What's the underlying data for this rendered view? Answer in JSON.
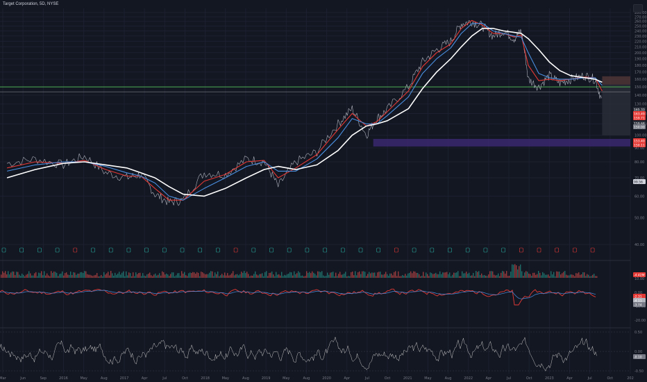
{
  "header": {
    "title": "Target Corporation, 5D, NYSE"
  },
  "colors": {
    "background": "#131722",
    "grid": "#1c2030",
    "price_line": "#b2b5be",
    "ma_white": "#ffffff",
    "ma_blue": "#4a90e2",
    "ma_red": "#e53935",
    "support_line": "#4caf50",
    "zone": "#3f2a7a",
    "axis_text": "#787b86"
  },
  "chart_data": [
    {
      "type": "line",
      "name": "price-pane",
      "y_scale": "log",
      "ylim": [
        40,
        290
      ],
      "y_ticks": [
        280,
        270,
        260,
        250,
        240,
        230,
        220,
        210,
        200,
        190,
        180,
        170,
        160,
        150,
        140,
        130,
        120,
        110,
        100,
        90,
        80,
        70,
        60,
        50,
        40
      ],
      "x_tick_labels": [
        "Mar",
        "Jun",
        "Sep",
        "2016",
        "May",
        "Aug",
        "2017",
        "Apr",
        "Jul",
        "Oct",
        "2018",
        "May",
        "Aug",
        "2019",
        "May",
        "Aug",
        "2020",
        "Apr",
        "Jul",
        "Oct",
        "2021",
        "May",
        "Aug",
        "2022",
        "Apr",
        "Jul",
        "Oct",
        "2023",
        "Apr",
        "Jul",
        "Oct",
        "202"
      ],
      "price_labels": [
        "165.33",
        "163.49",
        "159.71",
        "159.68",
        "150.00",
        "153.40",
        "150.11",
        "99.56"
      ],
      "x": [
        2015.1,
        2015.5,
        2015.9,
        2016.2,
        2016.5,
        2016.8,
        2017.0,
        2017.2,
        2017.4,
        2017.6,
        2017.9,
        2018.2,
        2018.5,
        2018.75,
        2018.95,
        2019.2,
        2019.5,
        2019.8,
        2020.0,
        2020.2,
        2020.35,
        2020.5,
        2020.8,
        2021.0,
        2021.2,
        2021.4,
        2021.55,
        2021.7,
        2021.85,
        2022.0,
        2022.15,
        2022.3,
        2022.4,
        2022.5,
        2022.65,
        2022.8,
        2022.95,
        2023.1,
        2023.3,
        2023.45,
        2023.55
      ],
      "series": [
        {
          "values": [
            79,
            82,
            78,
            84,
            73,
            70,
            72,
            61,
            57,
            58,
            73,
            72,
            82,
            80,
            65,
            80,
            87,
            110,
            125,
            100,
            115,
            124,
            150,
            185,
            205,
            220,
            255,
            260,
            250,
            230,
            240,
            225,
            240,
            160,
            150,
            165,
            155,
            160,
            165,
            160,
            132
          ]
        },
        {
          "values": [
            76,
            80,
            79,
            81,
            75,
            71,
            71,
            64,
            58,
            58,
            68,
            72,
            80,
            81,
            70,
            76,
            85,
            105,
            120,
            108,
            112,
            122,
            145,
            178,
            200,
            215,
            245,
            262,
            252,
            235,
            235,
            228,
            232,
            180,
            158,
            160,
            158,
            160,
            163,
            162,
            145
          ]
        },
        {
          "values": [
            74,
            78,
            80,
            80,
            77,
            73,
            71,
            67,
            60,
            58,
            64,
            70,
            77,
            80,
            74,
            74,
            82,
            98,
            115,
            110,
            110,
            118,
            138,
            168,
            190,
            208,
            235,
            255,
            256,
            240,
            235,
            230,
            228,
            200,
            168,
            162,
            160,
            160,
            162,
            162,
            152
          ]
        },
        {
          "values": [
            70,
            75,
            79,
            80,
            78,
            76,
            73,
            70,
            65,
            61,
            60,
            64,
            70,
            75,
            77,
            75,
            78,
            88,
            100,
            108,
            110,
            113,
            125,
            148,
            170,
            190,
            210,
            230,
            245,
            245,
            240,
            237,
            235,
            225,
            205,
            185,
            172,
            165,
            162,
            160,
            156
          ]
        }
      ]
    },
    {
      "type": "bar",
      "name": "volume-pane",
      "labels": [
        "-4.42M"
      ]
    },
    {
      "type": "line",
      "name": "oscillator-pane-1",
      "y_ticks": [
        10.0,
        0.0,
        -10.0,
        -20.0
      ],
      "labels": [
        "-2.31",
        "-4.11",
        "-3.74"
      ]
    },
    {
      "type": "line",
      "name": "oscillator-pane-2",
      "y_ticks": [
        0.5,
        0.0,
        -0.5
      ],
      "labels": [
        "-0.10"
      ]
    }
  ]
}
